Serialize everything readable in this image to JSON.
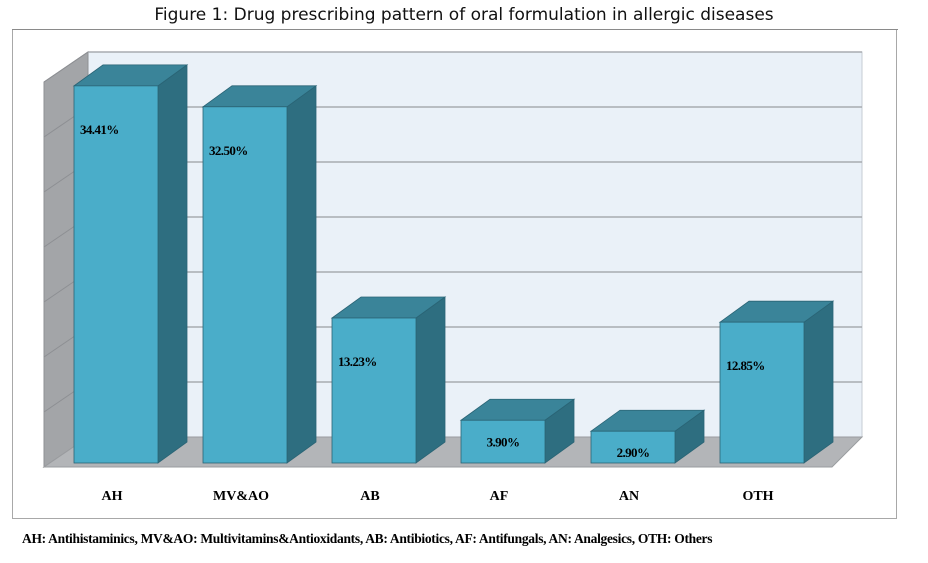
{
  "chart_data": {
    "type": "bar",
    "style": "3d-column",
    "title": "Figure 1: Drug prescribing pattern of oral formulation in allergic diseases",
    "xlabel": "",
    "ylabel": "",
    "ylim": [
      0,
      35
    ],
    "grid": true,
    "legend": "none",
    "categories": [
      "AH",
      "MV&AO",
      "AB",
      "AF",
      "AN",
      "OTH"
    ],
    "values": [
      34.41,
      32.5,
      13.23,
      3.9,
      2.9,
      12.85
    ],
    "data_labels": [
      "34.41%",
      "32.50%",
      "13.23%",
      "3.90%",
      "2.90%",
      "12.85%"
    ],
    "footnote": "AH: Antihistaminics, MV&AO: Multivitamins&Antioxidants, AB: Antibiotics, AF: Antifungals, AN: Analgesics, OTH: Others"
  },
  "colors": {
    "bar_front": "#4aadc9",
    "bar_top": "#3a8499",
    "bar_side": "#2e6e80",
    "bar_edge": "#2a6475",
    "back_wall": "#eaf1f8",
    "side_wall": "#a3a5a8",
    "floor": "#b3b5b8",
    "gridline": "#a8acb0"
  }
}
